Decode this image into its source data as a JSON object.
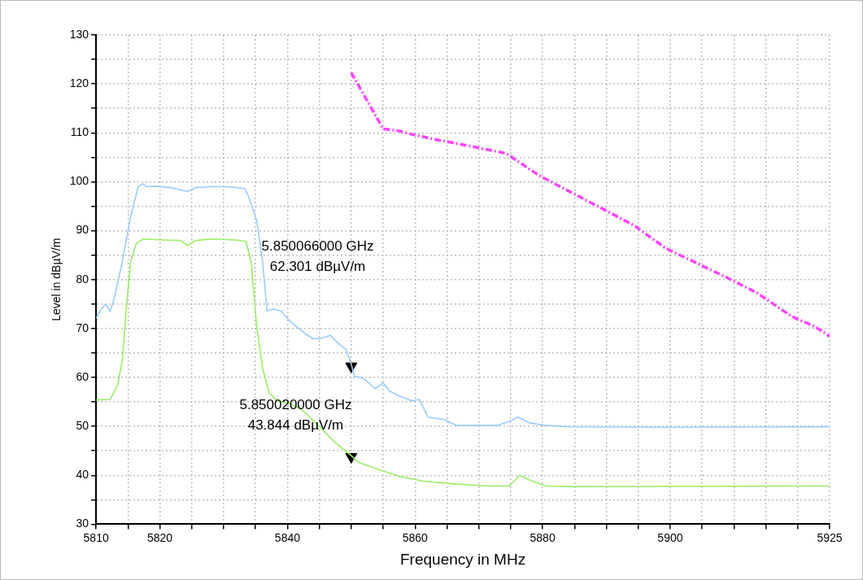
{
  "chart_data": {
    "type": "line",
    "xlabel": "Frequency in MHz",
    "ylabel": "Level in dBµV/m",
    "xlim": [
      5810,
      5925
    ],
    "xticks": [
      5810,
      {
        "value": 5815,
        "label": null
      },
      5820,
      {
        "value": 5825,
        "label": null
      },
      {
        "value": 5830,
        "label": null
      },
      {
        "value": 5835,
        "label": null
      },
      5840,
      {
        "value": 5845,
        "label": null
      },
      {
        "value": 5850,
        "label": null
      },
      {
        "value": 5855,
        "label": null
      },
      5860,
      {
        "value": 5865,
        "label": null
      },
      {
        "value": 5870,
        "label": null
      },
      {
        "value": 5875,
        "label": null
      },
      5880,
      {
        "value": 5885,
        "label": null
      },
      {
        "value": 5890,
        "label": null
      },
      {
        "value": 5895,
        "label": null
      },
      5900,
      {
        "value": 5905,
        "label": null
      },
      {
        "value": 5910,
        "label": null
      },
      {
        "value": 5915,
        "label": null
      },
      {
        "value": 5920,
        "label": null
      },
      5925
    ],
    "ylim": [
      30,
      130
    ],
    "yticks": [
      30,
      {
        "value": 35,
        "label": null
      },
      40,
      {
        "value": 45,
        "label": null
      },
      50,
      {
        "value": 55,
        "label": null
      },
      60,
      {
        "value": 65,
        "label": null
      },
      70,
      {
        "value": 75,
        "label": null
      },
      80,
      {
        "value": 85,
        "label": null
      },
      90,
      {
        "value": 95,
        "label": null
      },
      100,
      {
        "value": 105,
        "label": null
      },
      110,
      {
        "value": 115,
        "label": null
      },
      120,
      {
        "value": 125,
        "label": null
      },
      130
    ],
    "grid": true,
    "legend": false,
    "marker": "none",
    "line_style": "solid",
    "series": [
      {
        "color": "#99ccff",
        "x": [
          5810,
          5810.9,
          5811.5,
          5812.2,
          5812.8,
          5814.1,
          5815.4,
          5816.6,
          5817.3,
          5817.9,
          5819.2,
          5821.8,
          5824.3,
          5825.6,
          5828.1,
          5830.7,
          5833.3,
          5833.9,
          5835.2,
          5836.1,
          5836.8,
          5837.7,
          5839,
          5840.3,
          5841.6,
          5842.8,
          5844.1,
          5845.4,
          5846.7,
          5848,
          5849.2,
          5850,
          5850.5,
          5851.8,
          5853.1,
          5853.7,
          5855,
          5856,
          5857.5,
          5859.5,
          5860.7,
          5862,
          5864.6,
          5866.5,
          5870.3,
          5872.9,
          5874.8,
          5876.1,
          5878,
          5880.5,
          5884.4,
          5900,
          5925
        ],
        "values": [
          72.1,
          74.2,
          75,
          73.5,
          76,
          83.6,
          92.8,
          99,
          99.6,
          99,
          99.1,
          98.8,
          98,
          98.8,
          99,
          99,
          98.6,
          97,
          92,
          83.6,
          73.6,
          74,
          73.6,
          71.6,
          70.2,
          68.9,
          67.9,
          68,
          68.6,
          66.9,
          65.7,
          62.7,
          60.2,
          59.9,
          58.5,
          57.7,
          58.9,
          57.2,
          56.2,
          55.2,
          55.5,
          51.9,
          51.4,
          50.2,
          50.2,
          50.2,
          51,
          51.9,
          50.7,
          50.2,
          49.9,
          49.8,
          49.9
        ]
      },
      {
        "color": "#99ee66",
        "x": [
          5810,
          5812.2,
          5813.4,
          5814.1,
          5814.7,
          5815.4,
          5816.3,
          5817.3,
          5820.5,
          5823.3,
          5824.3,
          5825.6,
          5828.1,
          5831.9,
          5833.5,
          5834.3,
          5835.2,
          5836.1,
          5837.1,
          5838.4,
          5840.3,
          5842.2,
          5844.8,
          5847.3,
          5850,
          5851.1,
          5853.7,
          5857.5,
          5861.3,
          5866.5,
          5871.6,
          5874.8,
          5876.4,
          5878,
          5880.5,
          5884.4,
          5925
        ],
        "values": [
          55.4,
          55.5,
          58.5,
          63.6,
          73.6,
          83.6,
          87.4,
          88.3,
          88.1,
          88,
          86.9,
          88,
          88.3,
          88.1,
          87.8,
          83.6,
          70.2,
          61.9,
          56.9,
          55.2,
          54.7,
          53.5,
          50.2,
          46.9,
          44,
          42.7,
          41.4,
          39.8,
          38.8,
          38.2,
          37.8,
          37.8,
          40,
          39,
          37.8,
          37.7,
          37.8
        ]
      },
      {
        "color": "#ff44ff",
        "line_style": "dashed",
        "x": [
          5850,
          5855,
          5857.5,
          5858.8,
          5862.6,
          5865.8,
          5869.7,
          5874.3,
          5879.4,
          5889.5,
          5894.3,
          5899.3,
          5908.9,
          5913.6,
          5919,
          5922.7,
          5925
        ],
        "values": [
          122.3,
          110.8,
          110.4,
          109.9,
          108.8,
          108,
          107,
          105.8,
          101.3,
          94.4,
          91.1,
          86.4,
          80.4,
          77.3,
          72.5,
          70.4,
          68.4
        ]
      },
      {
        "type": "scatter",
        "marker": "triangle",
        "color": "#000000",
        "x": [
          5850
        ],
        "values": [
          62.3
        ]
      },
      {
        "type": "scatter",
        "marker": "triangle",
        "color": "#000000",
        "x": [
          5850
        ],
        "values": [
          43.8
        ]
      }
    ],
    "annotations": [
      "5.850066000 GHz\n62.301 dBµV/m",
      "5.850020000 GHz\n43.844 dBµV/m"
    ]
  }
}
